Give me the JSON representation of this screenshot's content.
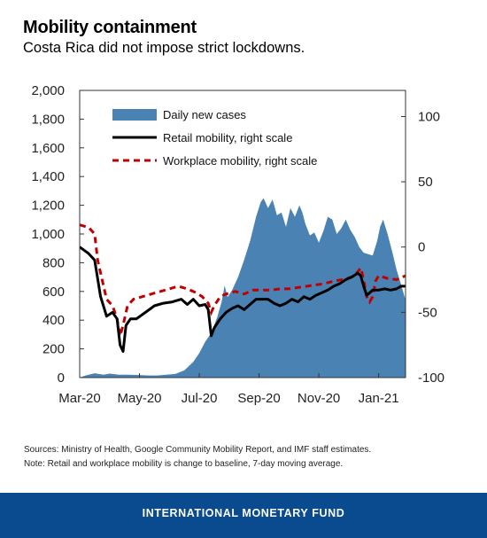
{
  "header": {
    "title": "Mobility containment",
    "subtitle": "Costa Rica did not impose strict lockdowns."
  },
  "notes": {
    "sources": "Sources: Ministry of Health, Google Community Mobility Report, and IMF staff estimates.",
    "note": "Note: Retail and workplace mobility is change to baseline, 7-day moving average."
  },
  "footer": {
    "label": "INTERNATIONAL MONETARY FUND"
  },
  "colors": {
    "cases": "#4a82b4",
    "retail": "#000000",
    "workplace": "#c00000",
    "footer_bg": "#0a4a8e"
  },
  "chart_data": {
    "type": "area",
    "x_tick_labels": [
      "Mar-20",
      "May-20",
      "Jul-20",
      "Sep-20",
      "Nov-20",
      "Jan-21"
    ],
    "left_axis": {
      "ylim": [
        0,
        2000
      ],
      "ticks": [
        "0",
        "200",
        "400",
        "600",
        "800",
        "1,000",
        "1,200",
        "1,400",
        "1,600",
        "1,800",
        "2,000"
      ]
    },
    "right_axis": {
      "ylim": [
        -100,
        120
      ],
      "ticks": [
        "-100",
        "-50",
        "0",
        "50",
        "100"
      ]
    },
    "legend": {
      "placement": "top-left",
      "items": [
        "Daily new cases",
        "Retail mobility, right scale",
        "Workplace mobility, right scale"
      ]
    },
    "x_range_months": [
      0,
      10.9
    ],
    "series": [
      {
        "name": "Daily new cases",
        "axis": "left",
        "style": "area",
        "points": [
          [
            0,
            0
          ],
          [
            0.2,
            15
          ],
          [
            0.5,
            30
          ],
          [
            0.8,
            20
          ],
          [
            1.0,
            28
          ],
          [
            1.3,
            20
          ],
          [
            1.6,
            20
          ],
          [
            2.0,
            18
          ],
          [
            2.3,
            15
          ],
          [
            2.6,
            15
          ],
          [
            2.9,
            20
          ],
          [
            3.2,
            25
          ],
          [
            3.5,
            50
          ],
          [
            3.8,
            110
          ],
          [
            4.0,
            170
          ],
          [
            4.2,
            250
          ],
          [
            4.4,
            310
          ],
          [
            4.6,
            420
          ],
          [
            4.75,
            530
          ],
          [
            4.85,
            640
          ],
          [
            4.95,
            560
          ],
          [
            5.1,
            610
          ],
          [
            5.3,
            700
          ],
          [
            5.5,
            820
          ],
          [
            5.7,
            950
          ],
          [
            5.9,
            1120
          ],
          [
            6.05,
            1220
          ],
          [
            6.15,
            1250
          ],
          [
            6.3,
            1180
          ],
          [
            6.45,
            1240
          ],
          [
            6.6,
            1130
          ],
          [
            6.75,
            1150
          ],
          [
            6.9,
            1050
          ],
          [
            7.05,
            1180
          ],
          [
            7.2,
            1120
          ],
          [
            7.35,
            1200
          ],
          [
            7.45,
            1150
          ],
          [
            7.55,
            1070
          ],
          [
            7.7,
            990
          ],
          [
            7.85,
            1010
          ],
          [
            8.0,
            940
          ],
          [
            8.15,
            1020
          ],
          [
            8.3,
            1120
          ],
          [
            8.45,
            1100
          ],
          [
            8.6,
            1000
          ],
          [
            8.75,
            1040
          ],
          [
            8.9,
            1100
          ],
          [
            9.05,
            1030
          ],
          [
            9.2,
            980
          ],
          [
            9.35,
            910
          ],
          [
            9.5,
            870
          ],
          [
            9.65,
            860
          ],
          [
            9.8,
            850
          ],
          [
            9.95,
            950
          ],
          [
            10.05,
            1050
          ],
          [
            10.15,
            1100
          ],
          [
            10.3,
            1000
          ],
          [
            10.45,
            880
          ],
          [
            10.6,
            750
          ],
          [
            10.75,
            650
          ],
          [
            10.9,
            540
          ]
        ]
      },
      {
        "name": "Retail mobility, right scale",
        "axis": "right",
        "style": "solid",
        "points": [
          [
            0,
            0
          ],
          [
            0.3,
            -5
          ],
          [
            0.5,
            -10
          ],
          [
            0.7,
            -38
          ],
          [
            0.9,
            -53
          ],
          [
            1.1,
            -50
          ],
          [
            1.25,
            -55
          ],
          [
            1.35,
            -75
          ],
          [
            1.45,
            -80
          ],
          [
            1.55,
            -60
          ],
          [
            1.7,
            -55
          ],
          [
            1.9,
            -55
          ],
          [
            2.2,
            -50
          ],
          [
            2.5,
            -45
          ],
          [
            2.8,
            -43
          ],
          [
            3.1,
            -42
          ],
          [
            3.4,
            -40
          ],
          [
            3.6,
            -44
          ],
          [
            3.8,
            -40
          ],
          [
            4.0,
            -45
          ],
          [
            4.2,
            -44
          ],
          [
            4.3,
            -48
          ],
          [
            4.4,
            -68
          ],
          [
            4.5,
            -62
          ],
          [
            4.7,
            -55
          ],
          [
            4.9,
            -50
          ],
          [
            5.1,
            -47
          ],
          [
            5.3,
            -45
          ],
          [
            5.5,
            -48
          ],
          [
            5.7,
            -44
          ],
          [
            5.9,
            -40
          ],
          [
            6.1,
            -40
          ],
          [
            6.3,
            -40
          ],
          [
            6.5,
            -43
          ],
          [
            6.7,
            -45
          ],
          [
            6.9,
            -43
          ],
          [
            7.1,
            -40
          ],
          [
            7.3,
            -42
          ],
          [
            7.5,
            -38
          ],
          [
            7.7,
            -40
          ],
          [
            7.9,
            -37
          ],
          [
            8.1,
            -35
          ],
          [
            8.3,
            -33
          ],
          [
            8.5,
            -30
          ],
          [
            8.7,
            -28
          ],
          [
            8.9,
            -25
          ],
          [
            9.1,
            -23
          ],
          [
            9.3,
            -20
          ],
          [
            9.4,
            -22
          ],
          [
            9.5,
            -30
          ],
          [
            9.6,
            -37
          ],
          [
            9.7,
            -35
          ],
          [
            9.8,
            -33
          ],
          [
            10.0,
            -33
          ],
          [
            10.2,
            -32
          ],
          [
            10.4,
            -33
          ],
          [
            10.6,
            -32
          ],
          [
            10.75,
            -30
          ],
          [
            10.9,
            -30
          ]
        ]
      },
      {
        "name": "Workplace mobility, right scale",
        "axis": "right",
        "style": "dashed",
        "points": [
          [
            0,
            17
          ],
          [
            0.3,
            15
          ],
          [
            0.5,
            10
          ],
          [
            0.6,
            -10
          ],
          [
            0.75,
            -25
          ],
          [
            0.9,
            -40
          ],
          [
            1.1,
            -45
          ],
          [
            1.25,
            -55
          ],
          [
            1.35,
            -68
          ],
          [
            1.45,
            -60
          ],
          [
            1.6,
            -45
          ],
          [
            1.8,
            -40
          ],
          [
            2.1,
            -38
          ],
          [
            2.4,
            -36
          ],
          [
            2.7,
            -34
          ],
          [
            3.0,
            -32
          ],
          [
            3.3,
            -30
          ],
          [
            3.6,
            -32
          ],
          [
            3.9,
            -35
          ],
          [
            4.1,
            -38
          ],
          [
            4.3,
            -43
          ],
          [
            4.4,
            -50
          ],
          [
            4.5,
            -45
          ],
          [
            4.7,
            -38
          ],
          [
            4.9,
            -36
          ],
          [
            5.2,
            -34
          ],
          [
            5.5,
            -36
          ],
          [
            5.8,
            -33
          ],
          [
            6.1,
            -33
          ],
          [
            6.4,
            -33
          ],
          [
            6.7,
            -32
          ],
          [
            7.0,
            -32
          ],
          [
            7.3,
            -31
          ],
          [
            7.6,
            -30
          ],
          [
            7.9,
            -29
          ],
          [
            8.2,
            -28
          ],
          [
            8.5,
            -26
          ],
          [
            8.8,
            -25
          ],
          [
            9.1,
            -23
          ],
          [
            9.3,
            -19
          ],
          [
            9.4,
            -16
          ],
          [
            9.5,
            -25
          ],
          [
            9.6,
            -38
          ],
          [
            9.7,
            -42
          ],
          [
            9.8,
            -38
          ],
          [
            9.9,
            -26
          ],
          [
            10.0,
            -22
          ],
          [
            10.3,
            -24
          ],
          [
            10.6,
            -25
          ],
          [
            10.9,
            -22
          ]
        ]
      }
    ]
  }
}
